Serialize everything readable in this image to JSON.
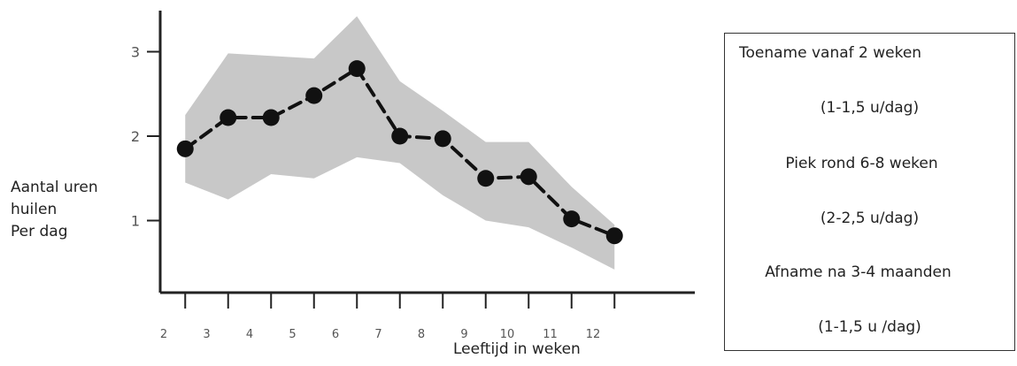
{
  "chart_data": {
    "type": "line",
    "xlabel": "Leeftijd in weken",
    "ylabel_lines": [
      "Aantal uren",
      "huilen",
      "Per dag"
    ],
    "x_tick_labels": [
      "2",
      "3",
      "4",
      "5",
      "6",
      "7",
      "8",
      "9",
      "10",
      "11",
      "12"
    ],
    "y_tick_labels": [
      "1",
      "2",
      "3"
    ],
    "xlim": [
      2,
      12
    ],
    "ylim": [
      0,
      3.5
    ],
    "points": [
      {
        "x": 2.5,
        "y": 1.85
      },
      {
        "x": 3.5,
        "y": 2.22
      },
      {
        "x": 4.5,
        "y": 2.22
      },
      {
        "x": 5.5,
        "y": 2.48
      },
      {
        "x": 6.5,
        "y": 2.8
      },
      {
        "x": 7.5,
        "y": 2.0
      },
      {
        "x": 8.5,
        "y": 1.97
      },
      {
        "x": 9.5,
        "y": 1.5
      },
      {
        "x": 10.5,
        "y": 1.52
      },
      {
        "x": 11.5,
        "y": 1.02
      },
      {
        "x": 12.5,
        "y": 0.82
      }
    ],
    "band": {
      "upper": [
        {
          "x": 2.5,
          "y": 2.25
        },
        {
          "x": 3.5,
          "y": 2.98
        },
        {
          "x": 4.5,
          "y": 2.95
        },
        {
          "x": 5.5,
          "y": 2.92
        },
        {
          "x": 6.5,
          "y": 3.42
        },
        {
          "x": 7.5,
          "y": 2.65
        },
        {
          "x": 8.5,
          "y": 2.3
        },
        {
          "x": 9.5,
          "y": 1.93
        },
        {
          "x": 10.5,
          "y": 1.93
        },
        {
          "x": 11.5,
          "y": 1.4
        },
        {
          "x": 12.5,
          "y": 0.95
        }
      ],
      "lower": [
        {
          "x": 2.5,
          "y": 1.45
        },
        {
          "x": 3.5,
          "y": 1.25
        },
        {
          "x": 4.5,
          "y": 1.55
        },
        {
          "x": 5.5,
          "y": 1.5
        },
        {
          "x": 6.5,
          "y": 1.75
        },
        {
          "x": 7.5,
          "y": 1.68
        },
        {
          "x": 8.5,
          "y": 1.3
        },
        {
          "x": 9.5,
          "y": 1.0
        },
        {
          "x": 10.5,
          "y": 0.92
        },
        {
          "x": 11.5,
          "y": 0.68
        },
        {
          "x": 12.5,
          "y": 0.42
        }
      ]
    },
    "colors": {
      "band": "#c8c8c8",
      "line": "#111111",
      "marker": "#111111",
      "axis": "#222222",
      "tick_label": "#555555"
    }
  },
  "info_box": {
    "lines": [
      "Toename vanaf 2 weken",
      "(1-1,5 u/dag)",
      "Piek rond 6-8 weken",
      "(2-2,5 u/dag)",
      "Afname na 3-4 maanden",
      "(1-1,5 u /dag)"
    ]
  }
}
